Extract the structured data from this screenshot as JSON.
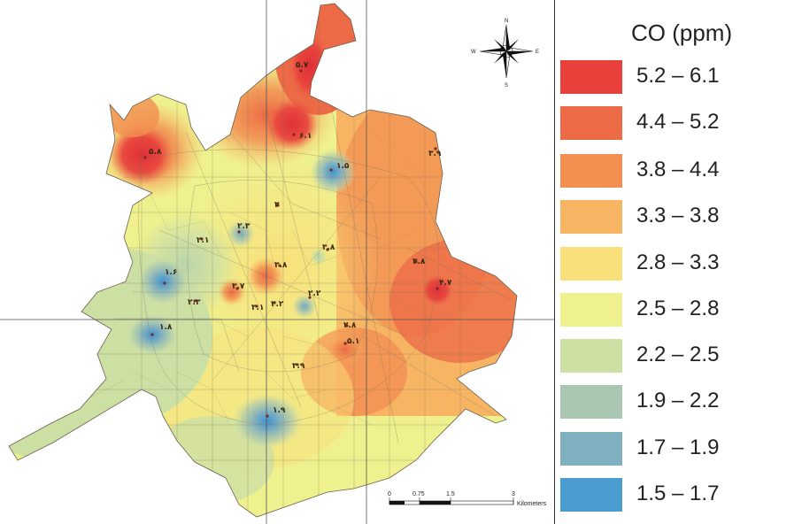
{
  "legend": {
    "title": "CO (ppm)",
    "classes": [
      {
        "label": "5.2 – 6.1",
        "color": "#e8413c"
      },
      {
        "label": "4.4 – 5.2",
        "color": "#ec6a45"
      },
      {
        "label": "3.8 – 4.4",
        "color": "#f28f51"
      },
      {
        "label": "3.3 – 3.8",
        "color": "#f7b564"
      },
      {
        "label": "2.8 – 3.3",
        "color": "#f9e07a"
      },
      {
        "label": "2.5 – 2.8",
        "color": "#eff08e"
      },
      {
        "label": "2.2 – 2.5",
        "color": "#cde0a4"
      },
      {
        "label": "1.9 – 2.2",
        "color": "#a9c7b0"
      },
      {
        "label": "1.7 – 1.9",
        "color": "#7fb0c0"
      },
      {
        "label": "1.5 – 1.7",
        "color": "#4a9bd0"
      }
    ]
  },
  "compass": {
    "n": "N",
    "s": "S",
    "e": "E",
    "w": "W"
  },
  "scale_bar": {
    "ticks": [
      "0",
      "0.75",
      "1.5",
      "3"
    ],
    "unit": "Kilometers"
  },
  "point_labels": [
    "۵.۷",
    "۵.۸",
    "۶.۱",
    "۱.۵",
    "۳.۹",
    "۲.۳",
    "۲.۱",
    "۱.۶",
    "۳.۸",
    "۳.۷",
    "۲.۲",
    "۳.۱",
    "۳.۲",
    "۲.۸",
    "۵.۱",
    "۱.۸",
    "۳.۸",
    "۴.۷",
    "۳.۹",
    "۱.۹",
    "۳"
  ]
}
